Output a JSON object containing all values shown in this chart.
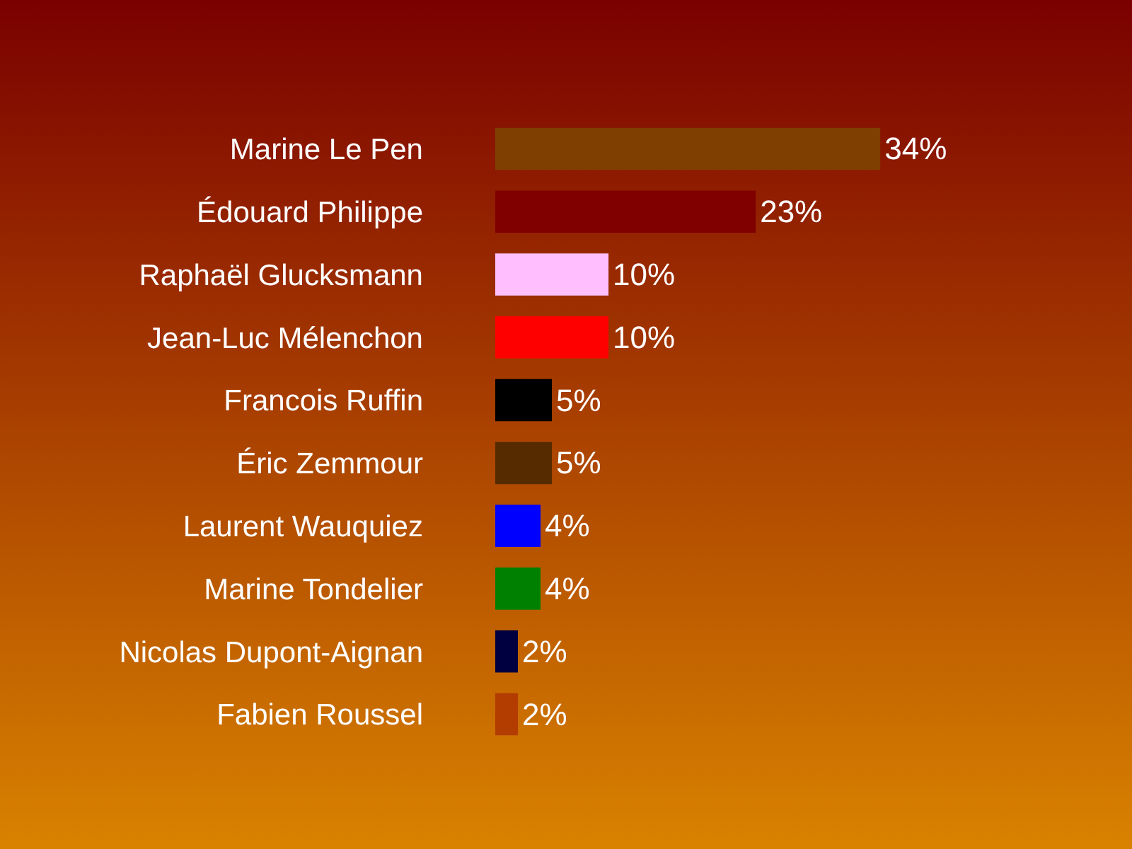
{
  "chart_data": {
    "type": "bar",
    "orientation": "horizontal",
    "categories": [
      "Marine Le Pen",
      "Édouard Philippe",
      "Raphaël Glucksmann",
      "Jean-Luc Mélenchon",
      "Francois Ruffin",
      "Éric Zemmour",
      "Laurent Wauquiez",
      "Marine Tondelier",
      "Nicolas Dupont-Aignan",
      "Fabien Roussel"
    ],
    "values": [
      34,
      23,
      10,
      10,
      5,
      5,
      4,
      4,
      2,
      2
    ],
    "value_labels": [
      "34%",
      "23%",
      "10%",
      "10%",
      "5%",
      "5%",
      "4%",
      "4%",
      "2%",
      "2%"
    ],
    "colors": [
      "#7f3f00",
      "#800000",
      "#ffbfff",
      "#ff0000",
      "#000000",
      "#562b00",
      "#0000ff",
      "#008000",
      "#000040",
      "#b33c00"
    ],
    "legend": false,
    "grid": false
  }
}
